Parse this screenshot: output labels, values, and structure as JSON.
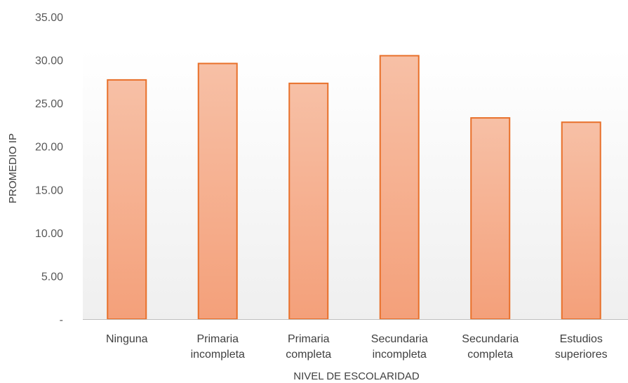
{
  "chart_data": {
    "type": "bar",
    "title": "",
    "xlabel": "NIVEL DE ESCOLARIDAD",
    "ylabel": "PROMEDIO IP",
    "categories": [
      [
        "Ninguna"
      ],
      [
        "Primaria",
        "incompleta"
      ],
      [
        "Primaria",
        "completa"
      ],
      [
        "Secundaria",
        "incompleta"
      ],
      [
        "Secundaria",
        "completa"
      ],
      [
        "Estudios",
        "superiores"
      ]
    ],
    "values": [
      27.7,
      29.6,
      27.3,
      30.5,
      23.3,
      22.8
    ],
    "ylim": [
      0,
      35
    ],
    "yticks": [
      0,
      5,
      10,
      15,
      20,
      25,
      30,
      35
    ],
    "ytick_labels": [
      "-",
      "5.00",
      "10.00",
      "15.00",
      "20.00",
      "25.00",
      "30.00",
      "35.00"
    ],
    "grid": false,
    "legend": "none",
    "colors": {
      "bar_fill_top": "#f7c0a6",
      "bar_fill_bottom": "#f4a07a",
      "bar_stroke": "#e8702a",
      "plot_bg_top": "#ffffff",
      "plot_bg_bottom": "#efefef",
      "axis": "#bfbfbf"
    }
  }
}
